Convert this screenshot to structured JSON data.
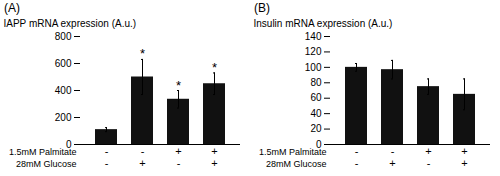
{
  "chart_data": [
    {
      "type": "bar",
      "title": "(A)",
      "ylabel": "IAPP mRNA expression (A.u.)",
      "categories": [
        null,
        null,
        null,
        null
      ],
      "values": [
        110,
        500,
        335,
        450
      ],
      "errors": [
        15,
        130,
        65,
        80
      ],
      "significant": [
        false,
        true,
        true,
        true
      ],
      "significance_label": "*",
      "row_labels": [
        {
          "name": "1.5mM Palmitate",
          "labels": [
            "-",
            "-",
            "+",
            "+"
          ]
        },
        {
          "name": "28mM Glucose",
          "labels": [
            "-",
            "+",
            "-",
            "+"
          ]
        }
      ],
      "color": "#111111",
      "ylim": [
        0,
        800
      ],
      "yticks": [
        0,
        200,
        400,
        600,
        800
      ],
      "grid": false,
      "tick_labels": "y"
    },
    {
      "type": "bar",
      "title": "(B)",
      "ylabel": "Insulin mRNA expression (A.u.)",
      "categories": [
        null,
        null,
        null,
        null
      ],
      "values": [
        100,
        97,
        75,
        65
      ],
      "errors": [
        5,
        12,
        10,
        20
      ],
      "significant": [
        false,
        false,
        false,
        false
      ],
      "significance_label": "*",
      "row_labels": [
        {
          "name": "1.5mM Palmitate",
          "labels": [
            "-",
            "-",
            "+",
            "+"
          ]
        },
        {
          "name": "28mM Glucose",
          "labels": [
            "-",
            "+",
            "-",
            "+"
          ]
        }
      ],
      "color": "#111111",
      "ylim": [
        0,
        140
      ],
      "yticks": [
        0,
        20,
        40,
        60,
        80,
        100,
        120,
        140
      ],
      "grid": false,
      "tick_labels": "y"
    }
  ]
}
